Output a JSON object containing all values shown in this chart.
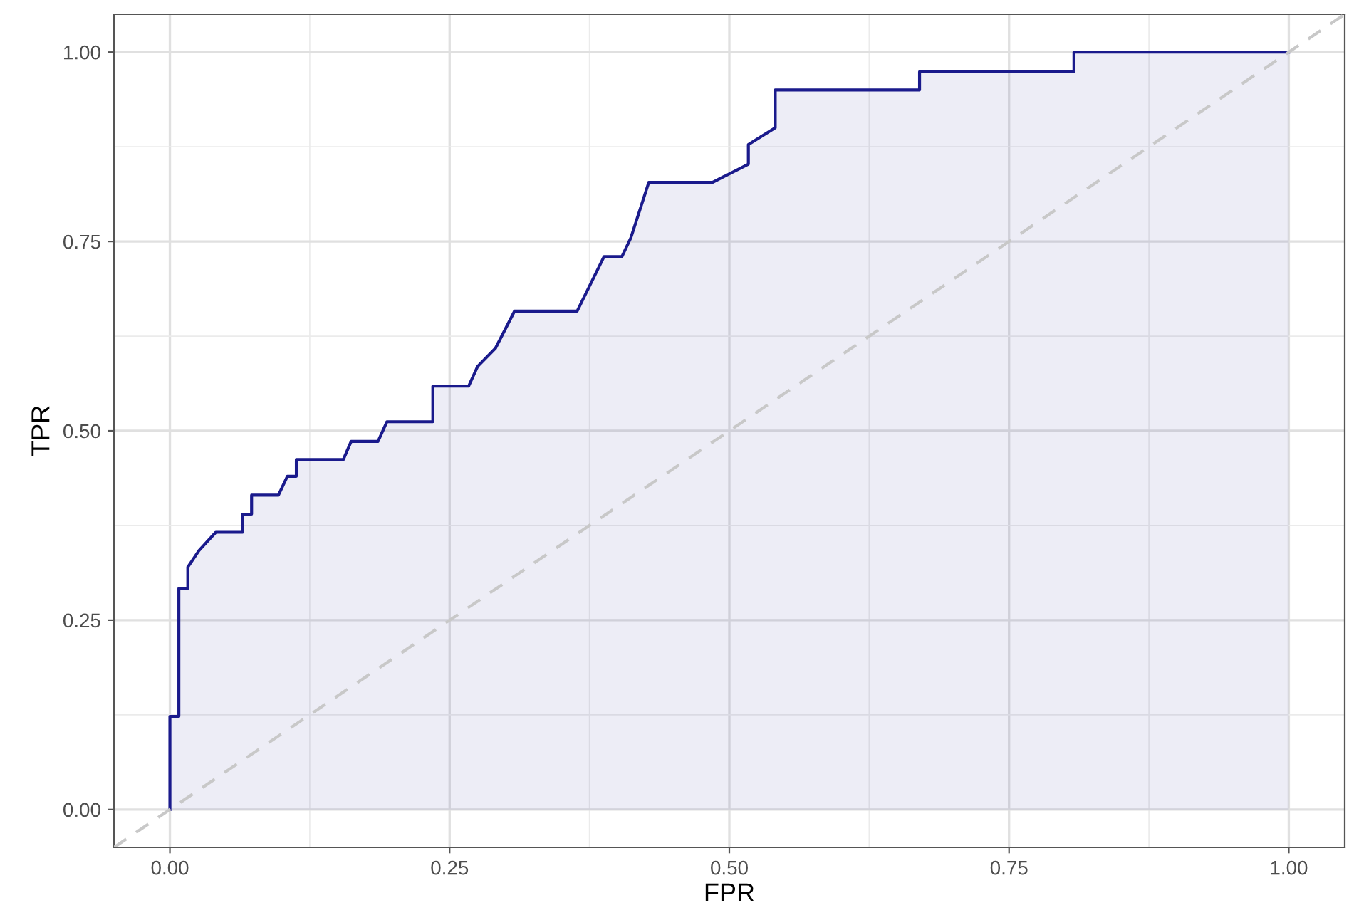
{
  "chart_data": {
    "type": "area",
    "xlabel": "FPR",
    "ylabel": "TPR",
    "xlim": [
      -0.05,
      1.05
    ],
    "ylim": [
      -0.05,
      1.05
    ],
    "xticks": [
      {
        "value": 0,
        "label": "0.00"
      },
      {
        "value": 0.25,
        "label": "0.25"
      },
      {
        "value": 0.5,
        "label": "0.50"
      },
      {
        "value": 0.75,
        "label": "0.75"
      },
      {
        "value": 1,
        "label": "1.00"
      }
    ],
    "yticks": [
      {
        "value": 0,
        "label": "0.00"
      },
      {
        "value": 0.25,
        "label": "0.25"
      },
      {
        "value": 0.5,
        "label": "0.50"
      },
      {
        "value": 0.75,
        "label": "0.75"
      },
      {
        "value": 1,
        "label": "1.00"
      }
    ],
    "grid": true,
    "series": [
      {
        "color": "#1a1a8c",
        "line_style": "solid",
        "x": [
          0,
          0,
          0.008,
          0.008,
          0.016,
          0.016,
          0.026,
          0.041,
          0.065,
          0.065,
          0.073,
          0.073,
          0.097,
          0.105,
          0.113,
          0.113,
          0.155,
          0.162,
          0.186,
          0.194,
          0.235,
          0.235,
          0.267,
          0.275,
          0.291,
          0.308,
          0.364,
          0.388,
          0.404,
          0.412,
          0.428,
          0.485,
          0.517,
          0.517,
          0.541,
          0.541,
          0.67,
          0.67,
          0.808,
          0.808,
          1.0
        ],
        "values": [
          0,
          0.123,
          0.123,
          0.292,
          0.292,
          0.32,
          0.342,
          0.366,
          0.366,
          0.39,
          0.39,
          0.415,
          0.415,
          0.44,
          0.44,
          0.462,
          0.462,
          0.486,
          0.486,
          0.512,
          0.512,
          0.559,
          0.559,
          0.585,
          0.609,
          0.658,
          0.658,
          0.73,
          0.73,
          0.755,
          0.828,
          0.828,
          0.852,
          0.878,
          0.9,
          0.95,
          0.95,
          0.974,
          0.974,
          1.0,
          1.0
        ]
      },
      {
        "type": "line",
        "color": "#c8c8c8",
        "line_style": "dashed",
        "x": [
          -0.05,
          1.05
        ],
        "values": [
          -0.05,
          1.05
        ]
      }
    ]
  }
}
